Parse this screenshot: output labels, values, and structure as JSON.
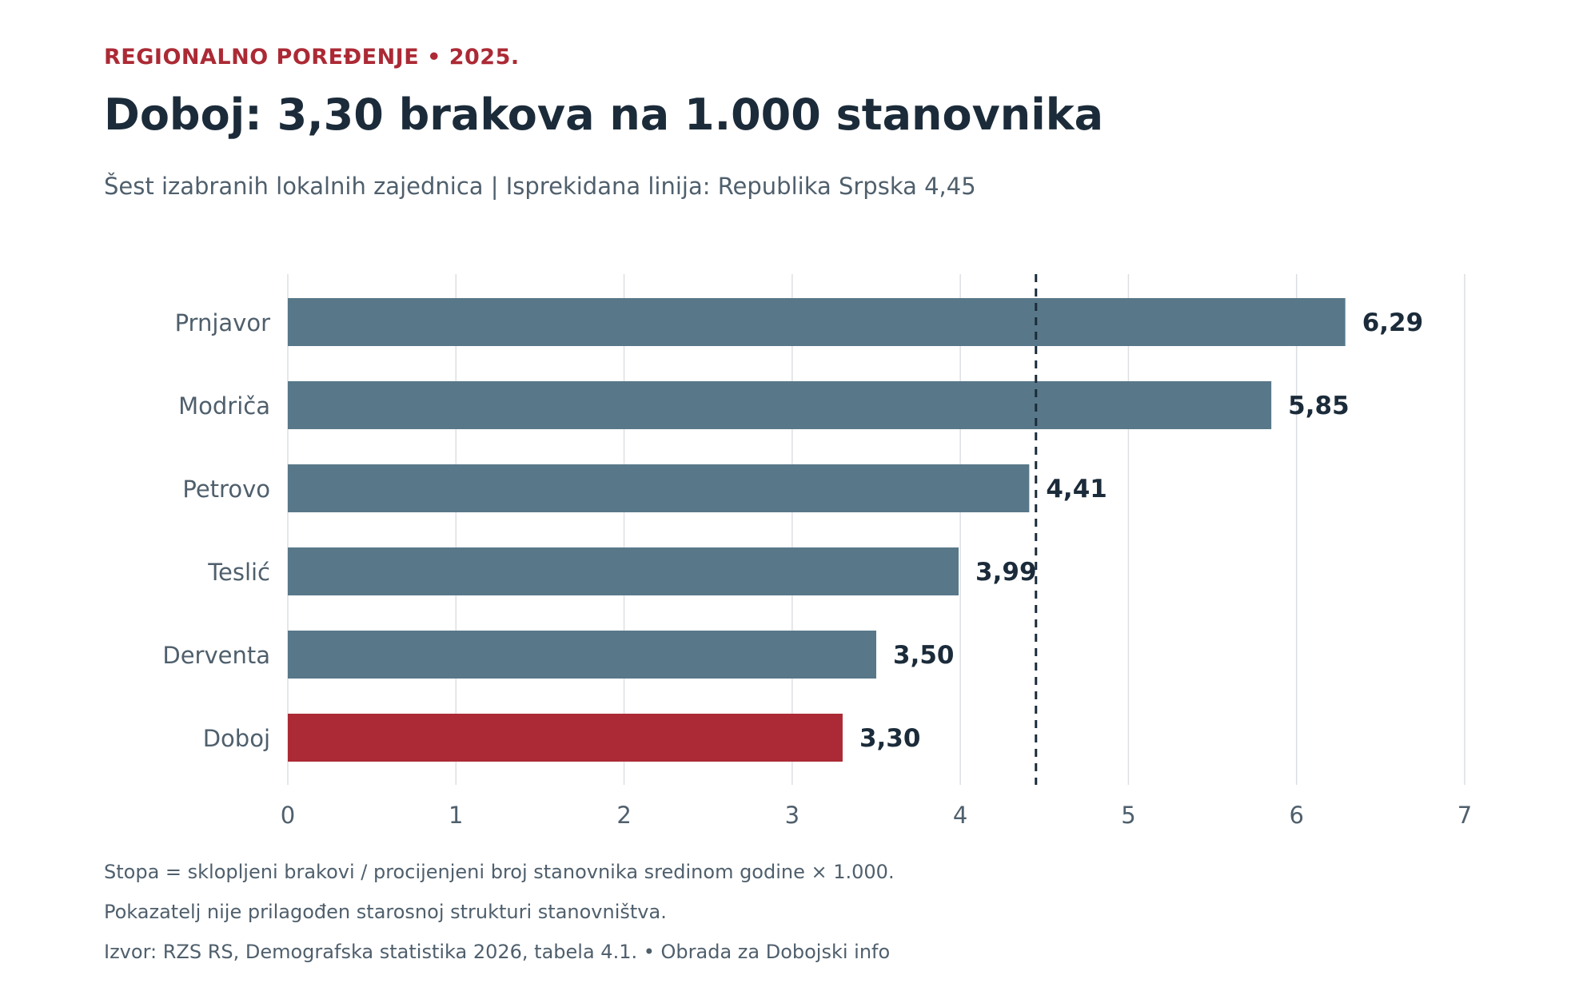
{
  "header": {
    "kicker": "REGIONALNO POREĐENJE • 2025.",
    "title": "Doboj: 3,30 brakova na 1.000 stanovnika",
    "subtitle": "Šest izabranih lokalnih zajednica  |  Isprekidana linija: Republika Srpska 4,45"
  },
  "chart_data": {
    "type": "bar",
    "orientation": "horizontal",
    "categories": [
      "Prnjavor",
      "Modriča",
      "Petrovo",
      "Teslić",
      "Derventa",
      "Doboj"
    ],
    "values": [
      6.29,
      5.85,
      4.41,
      3.99,
      3.5,
      3.3
    ],
    "value_labels": [
      "6,29",
      "5,85",
      "4,41",
      "3,99",
      "3,50",
      "3,30"
    ],
    "highlight_category": "Doboj",
    "reference_line": {
      "value": 4.45
    },
    "xlim": [
      0,
      7
    ],
    "xticks": [
      0,
      1,
      2,
      3,
      4,
      5,
      6,
      7
    ],
    "grid": "vertical",
    "colors": {
      "bar": "#587889",
      "highlight": "#ab2a35",
      "reference": "#1b2b3a",
      "grid": "#dcdfe2",
      "label": "#1b2b3a",
      "axis_text": "#4f5f6c"
    }
  },
  "footer": {
    "notes": [
      "Stopa = sklopljeni brakovi / procijenjeni broj stanovnika sredinom godine × 1.000.",
      "Pokazatelj nije prilagođen starosnoj strukturi stanovništva.",
      "Izvor: RZS RS, Demografska statistika 2026, tabela 4.1. • Obrada za Dobojski info"
    ]
  }
}
